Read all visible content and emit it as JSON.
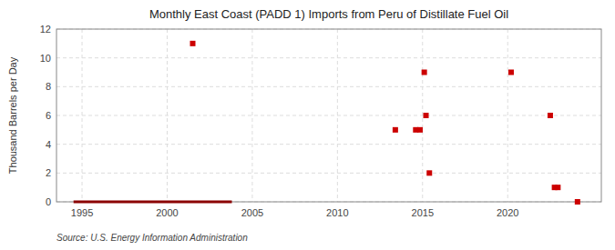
{
  "chart_data": {
    "type": "scatter",
    "title": "Monthly East Coast (PADD 1) Imports from Peru of Distillate Fuel Oil",
    "ylabel": "Thousand Barrels per Day",
    "source": "Source: U.S. Energy Information Administration",
    "xlim": [
      1993.5,
      2025.5
    ],
    "ylim": [
      0,
      12
    ],
    "xticks": [
      1995,
      2000,
      2005,
      2010,
      2015,
      2020
    ],
    "yticks": [
      0,
      2,
      4,
      6,
      8,
      10,
      12
    ],
    "grid": true,
    "series": [
      {
        "type": "line",
        "color": "#8b0000",
        "x": [
          1994.5,
          2003.8
        ],
        "values": [
          0,
          0
        ]
      },
      {
        "type": "scatter",
        "color": "#cc0000",
        "marker": "square",
        "x": [
          2001.5,
          2013.4,
          2014.6,
          2014.85,
          2015.1,
          2015.2,
          2015.4,
          2020.2,
          2022.5,
          2022.75,
          2022.95,
          2024.1
        ],
        "values": [
          11,
          5,
          5,
          5,
          9,
          6,
          2,
          9,
          6,
          1,
          1,
          0
        ]
      }
    ]
  }
}
